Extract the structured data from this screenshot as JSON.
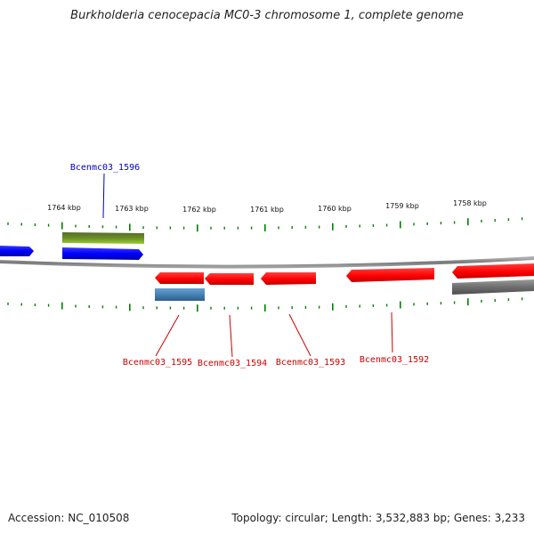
{
  "title": "Burkholderia cenocepacia MC0-3 chromosome 1, complete genome",
  "footer": {
    "accession": "Accession: NC_010508",
    "summary": "Topology: circular; Length: 3,532,883 bp; Genes: 3,233"
  },
  "scale_labels": [
    "1764 kbp",
    "1763 kbp",
    "1762 kbp",
    "1761 kbp",
    "1760 kbp",
    "1759 kbp",
    "1758 kbp"
  ],
  "genes": [
    {
      "label": "Bcenmc03_1596",
      "strand": "forward",
      "color": "#0000cc"
    },
    {
      "label": "Bcenmc03_1595",
      "strand": "reverse",
      "color": "#cc0000"
    },
    {
      "label": "Bcenmc03_1594",
      "strand": "reverse",
      "color": "#cc0000"
    },
    {
      "label": "Bcenmc03_1593",
      "strand": "reverse",
      "color": "#cc0000"
    },
    {
      "label": "Bcenmc03_1592",
      "strand": "reverse",
      "color": "#cc0000"
    }
  ],
  "colors": {
    "forward_cds": "#0000ff",
    "reverse_cds": "#ff0000",
    "forward_gene": "#6b8e23",
    "reverse_gene": "#4682b4",
    "backbone": "#808080",
    "tick": "#008000"
  }
}
